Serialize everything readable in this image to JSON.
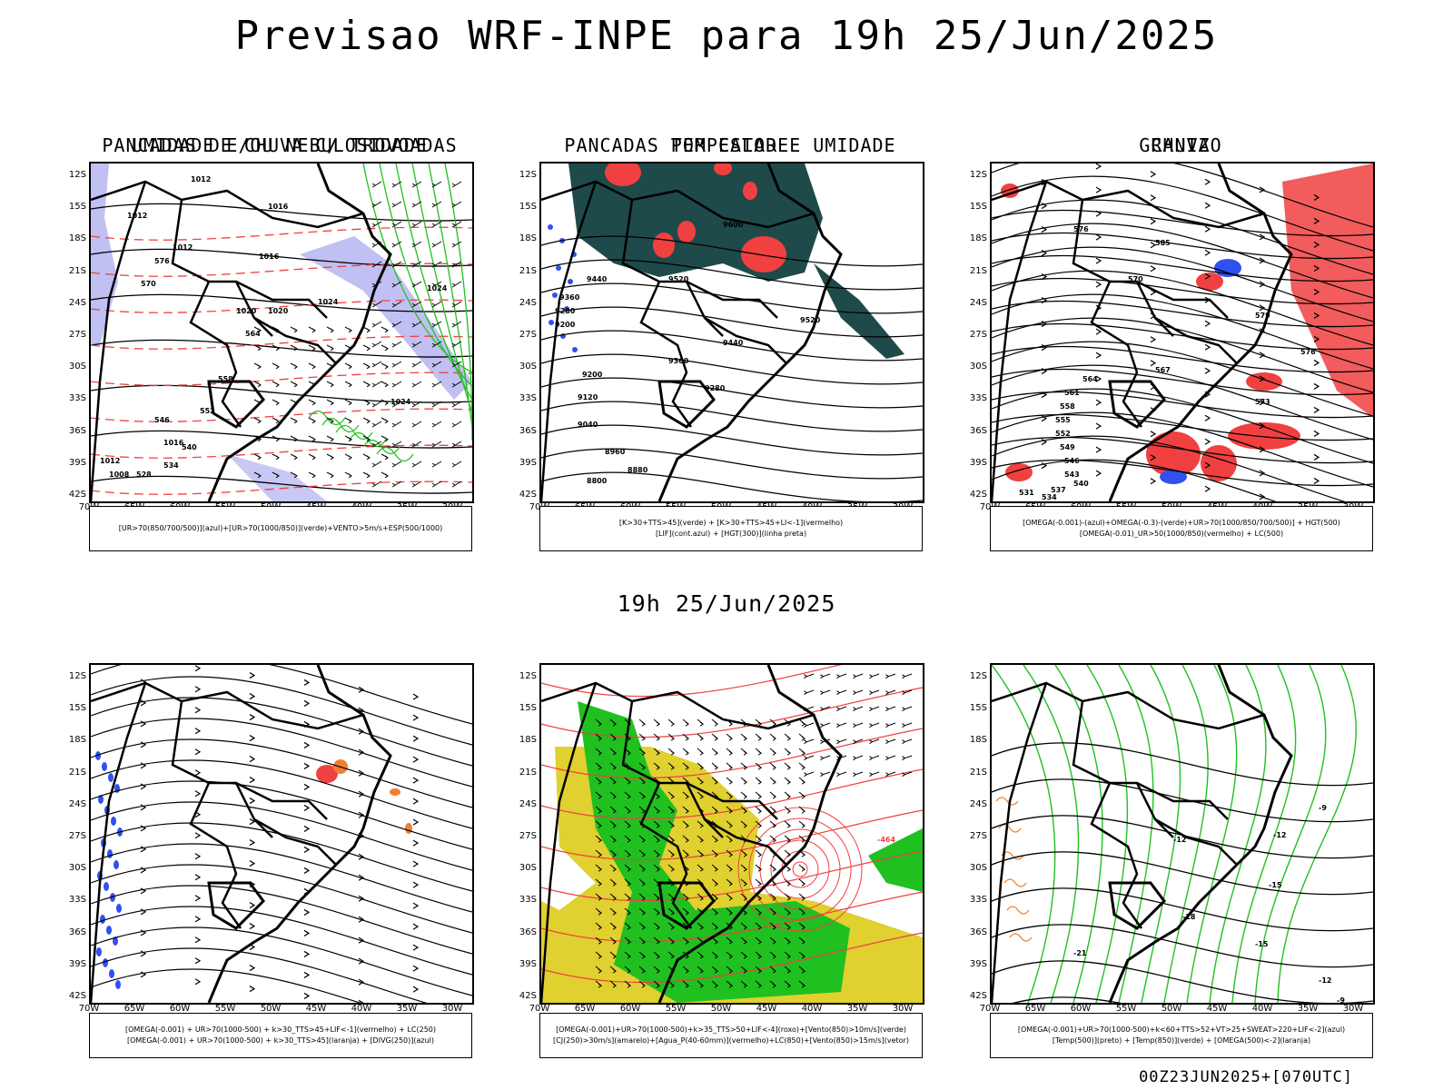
{
  "title": "Previsao WRF-INPE  para 19h 25/Jun/2025",
  "mid_time": "19h 25/Jun/2025",
  "run_info": "00Z23JUN2025+[070UTC]",
  "lat_labels": [
    "12S",
    "15S",
    "18S",
    "21S",
    "24S",
    "27S",
    "30S",
    "33S",
    "36S",
    "39S",
    "42S"
  ],
  "lon_labels": [
    "70W",
    "65W",
    "60W",
    "55W",
    "50W",
    "45W",
    "40W",
    "35W",
    "30W"
  ],
  "panels": [
    {
      "title": "UMIDADE E/OU NEBULOSIDADE",
      "legend": [
        "[UR>70(850/700/500)](azul)+[UR>70(1000/850)](verde)+VENTO>5m/s+ESP(500/1000)"
      ]
    },
    {
      "title": "PANCADAS POR CALOR E UMIDADE",
      "legend": [
        "[K>30+TTS>45](verde)  +  [K>30+TTS>45+LI<-1](vermelho)",
        "[LIF](cont.azul)  +  [HGT(300)](linha preta)"
      ]
    },
    {
      "title": "CHUVA",
      "legend": [
        "[OMEGA(-0.001)-(azul)+OMEGA(-0.3)-(verde)+UR>70(1000/850/700/500)]  +  HGT(500)",
        "[OMEGA(-0.01)_UR>50(1000/850)(vermelho)  +  LC(500)"
      ]
    },
    {
      "title": "PANCADAS DE CHUVA C/ TROVOADAS",
      "legend": [
        "[OMEGA(-0.001)  +  UR>70(1000-500)  +  k>30_TTS>45+LIF<-1](vermelho)  +  LC(250)",
        "[OMEGA(-0.001)  +  UR>70(1000-500)  +  k>30_TTS>45](laranja)  +  [DIVG(250)](azul)"
      ]
    },
    {
      "title": "TEMPESTADE",
      "legend": [
        "[OMEGA(-0.001)+UR>70(1000-500)+k>35_TTS>50+LIF<-4](roxo)+[Vento(850)>10m/s](verde)",
        "[CJ(250)>30m/s](amarelo)+[Agua_P(40-60mm)](vermelho)+LC(850)+[Vento(850)>15m/s](vetor)"
      ]
    },
    {
      "title": "GRANIZO",
      "legend": [
        "[OMEGA(-0.001)+UR>70(1000-500)+k<60+TTS>52+VT>25+SWEAT>220+LIF<-2](azul)",
        "[Temp(500)](preto)  +  [Temp(850)](verde)  +  [OMEGA(500)<-2](laranja)"
      ]
    }
  ],
  "map_labels": {
    "p1": [
      "1012",
      "1012",
      "1012",
      "1016",
      "1016",
      "1020",
      "1020",
      "1024",
      "1024",
      "1024",
      "1016",
      "1012",
      "1008",
      "576",
      "570",
      "564",
      "558",
      "552",
      "546",
      "540",
      "534",
      "528"
    ],
    "p2": [
      "9600",
      "9520",
      "9440",
      "9360",
      "9280",
      "9200",
      "9120",
      "9040",
      "8960",
      "8880",
      "8800",
      "9360",
      "9280",
      "9200",
      "9440",
      "9520"
    ],
    "p3": [
      "570",
      "576",
      "579",
      "576",
      "573",
      "567",
      "564",
      "561",
      "558",
      "555",
      "552",
      "549",
      "546",
      "543",
      "540",
      "537",
      "534",
      "531",
      "585"
    ],
    "p5": [
      "-464"
    ],
    "p6": [
      "-9",
      "-12",
      "-12",
      "-15",
      "-18",
      "-21",
      "-15",
      "-12",
      "-9"
    ]
  },
  "colors": {
    "dark_teal": "#1e4a4a",
    "red": "#f04040",
    "blue": "#3050f0",
    "green": "#20c020",
    "light_green": "#40d040",
    "lavender": "#b0b0f0",
    "yellow": "#e0d030",
    "orange": "#f08030"
  }
}
